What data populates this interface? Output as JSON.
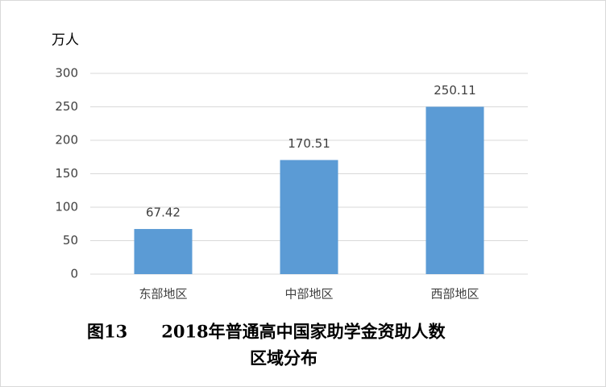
{
  "chart_data": {
    "type": "bar",
    "y_axis_label": "万人",
    "title": [
      "图13　　2018年普通高中国家助学金资助人数",
      "区域分布"
    ],
    "categories": [
      "东部地区",
      "中部地区",
      "西部地区"
    ],
    "values": [
      67.42,
      170.51,
      250.11
    ],
    "color": "#5b9bd5",
    "ylim": [
      0,
      300
    ],
    "yticks": [
      0,
      50,
      100,
      150,
      200,
      250,
      300
    ],
    "grid": true
  }
}
